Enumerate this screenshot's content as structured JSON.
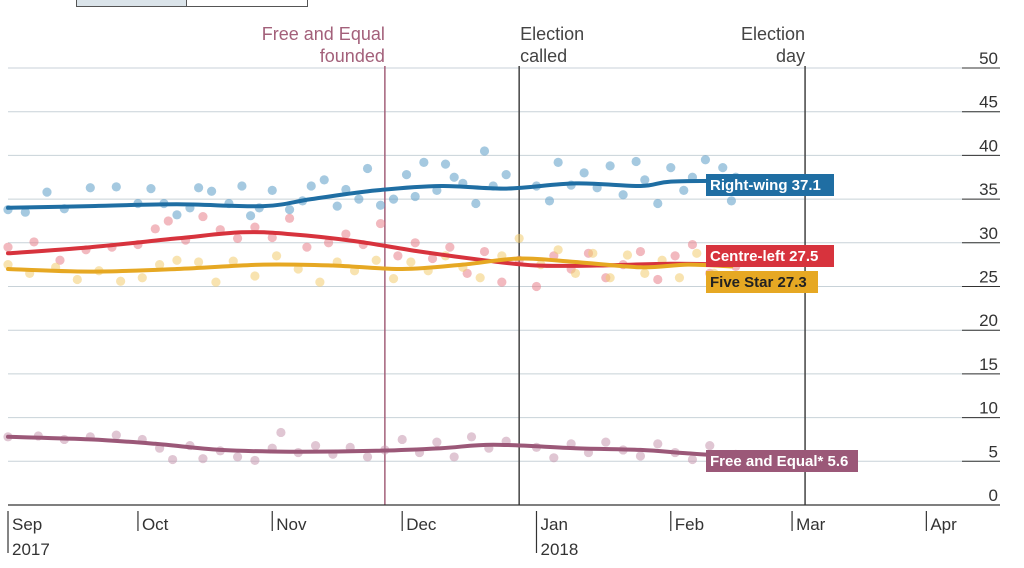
{
  "chart_data": {
    "type": "line",
    "x_axis": {
      "ticks": [
        {
          "date": "2017-09-01",
          "label": "Sep",
          "sub": "2017"
        },
        {
          "date": "2017-10-01",
          "label": "Oct",
          "sub": ""
        },
        {
          "date": "2017-11-01",
          "label": "Nov",
          "sub": ""
        },
        {
          "date": "2017-12-01",
          "label": "Dec",
          "sub": ""
        },
        {
          "date": "2018-01-01",
          "label": "Jan",
          "sub": "2018"
        },
        {
          "date": "2018-02-01",
          "label": "Feb",
          "sub": ""
        },
        {
          "date": "2018-03-01",
          "label": "Mar",
          "sub": ""
        },
        {
          "date": "2018-04-01",
          "label": "Apr",
          "sub": ""
        }
      ],
      "range": [
        "2017-09-01",
        "2018-04-18"
      ]
    },
    "y_axis": {
      "ticks": [
        0,
        5,
        10,
        15,
        20,
        25,
        30,
        35,
        40,
        45,
        50
      ],
      "ylim": [
        0,
        50
      ],
      "position": "right",
      "grid": true
    },
    "annotations": [
      {
        "date": "2017-11-27",
        "line1": "Free and Equal",
        "line2": "founded",
        "color": "#a3607a",
        "align": "end"
      },
      {
        "date": "2017-12-28",
        "line1": "Election",
        "line2": "called",
        "color": "#444444",
        "align": "start"
      },
      {
        "date": "2018-03-04",
        "line1": "Election",
        "line2": "day",
        "color": "#444444",
        "align": "end"
      }
    ],
    "series": [
      {
        "name": "Right-wing",
        "end_value": "37.1",
        "color": "#1f6ea3",
        "dot_color": "#5b9cc6",
        "trend": [
          [
            "2017-09-01",
            34.0
          ],
          [
            "2017-09-20",
            34.2
          ],
          [
            "2017-10-10",
            34.4
          ],
          [
            "2017-10-30",
            34.2
          ],
          [
            "2017-11-10",
            35.0
          ],
          [
            "2017-11-25",
            36.0
          ],
          [
            "2017-12-10",
            36.5
          ],
          [
            "2017-12-25",
            36.2
          ],
          [
            "2018-01-10",
            36.8
          ],
          [
            "2018-01-25",
            36.5
          ],
          [
            "2018-02-01",
            37.0
          ],
          [
            "2018-02-15",
            37.1
          ]
        ],
        "polls": [
          [
            "2017-09-01",
            33.8
          ],
          [
            "2017-09-05",
            33.5
          ],
          [
            "2017-09-10",
            35.8
          ],
          [
            "2017-09-14",
            33.9
          ],
          [
            "2017-09-20",
            36.3
          ],
          [
            "2017-09-26",
            36.4
          ],
          [
            "2017-10-01",
            34.5
          ],
          [
            "2017-10-04",
            36.2
          ],
          [
            "2017-10-07",
            34.5
          ],
          [
            "2017-10-10",
            33.2
          ],
          [
            "2017-10-13",
            34.0
          ],
          [
            "2017-10-15",
            36.3
          ],
          [
            "2017-10-18",
            35.9
          ],
          [
            "2017-10-22",
            34.5
          ],
          [
            "2017-10-25",
            36.5
          ],
          [
            "2017-10-27",
            33.1
          ],
          [
            "2017-10-29",
            34.0
          ],
          [
            "2017-11-01",
            36.0
          ],
          [
            "2017-11-05",
            33.8
          ],
          [
            "2017-11-08",
            34.8
          ],
          [
            "2017-11-10",
            36.5
          ],
          [
            "2017-11-13",
            37.2
          ],
          [
            "2017-11-16",
            34.2
          ],
          [
            "2017-11-18",
            36.1
          ],
          [
            "2017-11-21",
            35.0
          ],
          [
            "2017-11-23",
            38.5
          ],
          [
            "2017-11-26",
            34.3
          ],
          [
            "2017-11-29",
            35.0
          ],
          [
            "2017-12-02",
            37.8
          ],
          [
            "2017-12-04",
            35.3
          ],
          [
            "2017-12-06",
            39.2
          ],
          [
            "2017-12-09",
            36.0
          ],
          [
            "2017-12-11",
            39.0
          ],
          [
            "2017-12-13",
            37.5
          ],
          [
            "2017-12-15",
            36.8
          ],
          [
            "2017-12-18",
            34.5
          ],
          [
            "2017-12-20",
            40.5
          ],
          [
            "2017-12-22",
            36.5
          ],
          [
            "2017-12-25",
            37.8
          ],
          [
            "2018-01-01",
            36.5
          ],
          [
            "2018-01-04",
            34.8
          ],
          [
            "2018-01-06",
            39.2
          ],
          [
            "2018-01-09",
            36.6
          ],
          [
            "2018-01-12",
            38.0
          ],
          [
            "2018-01-15",
            36.3
          ],
          [
            "2018-01-18",
            38.8
          ],
          [
            "2018-01-21",
            35.5
          ],
          [
            "2018-01-24",
            39.3
          ],
          [
            "2018-01-26",
            37.2
          ],
          [
            "2018-01-29",
            34.5
          ],
          [
            "2018-02-01",
            38.6
          ],
          [
            "2018-02-04",
            36.0
          ],
          [
            "2018-02-06",
            37.5
          ],
          [
            "2018-02-09",
            39.5
          ],
          [
            "2018-02-11",
            36.4
          ],
          [
            "2018-02-13",
            38.6
          ],
          [
            "2018-02-15",
            34.8
          ],
          [
            "2018-02-16",
            37.5
          ]
        ]
      },
      {
        "name": "Centre-left",
        "end_value": "27.5",
        "color": "#d7333d",
        "dot_color": "#e8808a",
        "trend": [
          [
            "2017-09-01",
            28.8
          ],
          [
            "2017-09-20",
            29.5
          ],
          [
            "2017-10-10",
            30.5
          ],
          [
            "2017-10-25",
            31.2
          ],
          [
            "2017-11-05",
            31.0
          ],
          [
            "2017-11-20",
            30.2
          ],
          [
            "2017-12-05",
            29.0
          ],
          [
            "2017-12-20",
            28.0
          ],
          [
            "2018-01-01",
            27.4
          ],
          [
            "2018-01-15",
            27.4
          ],
          [
            "2018-02-01",
            27.6
          ],
          [
            "2018-02-15",
            27.5
          ]
        ],
        "polls": [
          [
            "2017-09-01",
            29.5
          ],
          [
            "2017-09-07",
            30.1
          ],
          [
            "2017-09-13",
            28.0
          ],
          [
            "2017-09-19",
            29.2
          ],
          [
            "2017-09-25",
            29.5
          ],
          [
            "2017-10-01",
            29.8
          ],
          [
            "2017-10-05",
            31.6
          ],
          [
            "2017-10-08",
            32.5
          ],
          [
            "2017-10-12",
            30.3
          ],
          [
            "2017-10-16",
            33.0
          ],
          [
            "2017-10-20",
            31.5
          ],
          [
            "2017-10-24",
            30.5
          ],
          [
            "2017-10-28",
            31.8
          ],
          [
            "2017-11-01",
            30.6
          ],
          [
            "2017-11-05",
            32.8
          ],
          [
            "2017-11-09",
            29.5
          ],
          [
            "2017-11-14",
            30.0
          ],
          [
            "2017-11-18",
            31.0
          ],
          [
            "2017-11-22",
            29.8
          ],
          [
            "2017-11-26",
            32.2
          ],
          [
            "2017-11-30",
            28.5
          ],
          [
            "2017-12-04",
            30.0
          ],
          [
            "2017-12-08",
            28.2
          ],
          [
            "2017-12-12",
            29.5
          ],
          [
            "2017-12-16",
            26.5
          ],
          [
            "2017-12-20",
            29.0
          ],
          [
            "2017-12-24",
            25.5
          ],
          [
            "2017-12-28",
            28.0
          ],
          [
            "2018-01-01",
            25.0
          ],
          [
            "2018-01-05",
            28.5
          ],
          [
            "2018-01-09",
            27.0
          ],
          [
            "2018-01-13",
            28.8
          ],
          [
            "2018-01-17",
            26.0
          ],
          [
            "2018-01-21",
            27.5
          ],
          [
            "2018-01-25",
            29.0
          ],
          [
            "2018-01-29",
            25.8
          ],
          [
            "2018-02-02",
            28.5
          ],
          [
            "2018-02-06",
            29.8
          ],
          [
            "2018-02-10",
            26.5
          ],
          [
            "2018-02-14",
            28.5
          ],
          [
            "2018-02-16",
            27.3
          ]
        ]
      },
      {
        "name": "Five Star",
        "end_value": "27.3",
        "color": "#e6a823",
        "dot_color": "#f3cc6f",
        "trend": [
          [
            "2017-09-01",
            27.0
          ],
          [
            "2017-09-20",
            26.7
          ],
          [
            "2017-10-10",
            27.0
          ],
          [
            "2017-10-30",
            27.5
          ],
          [
            "2017-11-15",
            27.4
          ],
          [
            "2017-12-01",
            27.0
          ],
          [
            "2017-12-15",
            27.5
          ],
          [
            "2017-12-28",
            28.2
          ],
          [
            "2018-01-10",
            27.8
          ],
          [
            "2018-01-25",
            27.2
          ],
          [
            "2018-02-05",
            27.5
          ],
          [
            "2018-02-15",
            27.3
          ]
        ],
        "polls": [
          [
            "2017-09-01",
            27.5
          ],
          [
            "2017-09-06",
            26.5
          ],
          [
            "2017-09-12",
            27.2
          ],
          [
            "2017-09-17",
            25.8
          ],
          [
            "2017-09-22",
            26.8
          ],
          [
            "2017-09-27",
            25.6
          ],
          [
            "2017-10-02",
            26.0
          ],
          [
            "2017-10-06",
            27.5
          ],
          [
            "2017-10-10",
            28.0
          ],
          [
            "2017-10-15",
            27.8
          ],
          [
            "2017-10-19",
            25.5
          ],
          [
            "2017-10-23",
            27.9
          ],
          [
            "2017-10-28",
            26.2
          ],
          [
            "2017-11-02",
            28.5
          ],
          [
            "2017-11-07",
            27.0
          ],
          [
            "2017-11-12",
            25.5
          ],
          [
            "2017-11-16",
            27.8
          ],
          [
            "2017-11-20",
            26.8
          ],
          [
            "2017-11-25",
            28.0
          ],
          [
            "2017-11-29",
            25.9
          ],
          [
            "2017-12-03",
            27.8
          ],
          [
            "2017-12-07",
            26.8
          ],
          [
            "2017-12-11",
            28.5
          ],
          [
            "2017-12-15",
            27.2
          ],
          [
            "2017-12-19",
            26.0
          ],
          [
            "2017-12-24",
            28.5
          ],
          [
            "2017-12-28",
            30.5
          ],
          [
            "2018-01-02",
            27.5
          ],
          [
            "2018-01-06",
            29.2
          ],
          [
            "2018-01-10",
            26.5
          ],
          [
            "2018-01-14",
            28.8
          ],
          [
            "2018-01-18",
            26.0
          ],
          [
            "2018-01-22",
            28.6
          ],
          [
            "2018-01-26",
            26.5
          ],
          [
            "2018-01-30",
            28.0
          ],
          [
            "2018-02-03",
            26.0
          ],
          [
            "2018-02-07",
            28.8
          ],
          [
            "2018-02-11",
            26.5
          ],
          [
            "2018-02-14",
            29.2
          ],
          [
            "2018-02-16",
            25.8
          ]
        ]
      },
      {
        "name": "Free and Equal*",
        "end_value": "5.6",
        "color": "#9b5878",
        "dot_color": "#c797ae",
        "trend": [
          [
            "2017-09-01",
            7.8
          ],
          [
            "2017-09-20",
            7.5
          ],
          [
            "2017-10-05",
            7.0
          ],
          [
            "2017-10-20",
            6.3
          ],
          [
            "2017-11-05",
            6.1
          ],
          [
            "2017-11-25",
            6.2
          ],
          [
            "2017-12-10",
            6.5
          ],
          [
            "2017-12-22",
            6.9
          ],
          [
            "2018-01-10",
            6.5
          ],
          [
            "2018-01-25",
            6.3
          ],
          [
            "2018-02-05",
            5.9
          ],
          [
            "2018-02-15",
            5.6
          ]
        ],
        "polls": [
          [
            "2017-09-01",
            7.8
          ],
          [
            "2017-09-08",
            7.9
          ],
          [
            "2017-09-14",
            7.5
          ],
          [
            "2017-09-20",
            7.8
          ],
          [
            "2017-09-26",
            8.0
          ],
          [
            "2017-10-02",
            7.5
          ],
          [
            "2017-10-06",
            6.5
          ],
          [
            "2017-10-09",
            5.2
          ],
          [
            "2017-10-13",
            6.8
          ],
          [
            "2017-10-16",
            5.3
          ],
          [
            "2017-10-20",
            6.2
          ],
          [
            "2017-10-24",
            5.5
          ],
          [
            "2017-10-28",
            5.1
          ],
          [
            "2017-11-01",
            6.5
          ],
          [
            "2017-11-03",
            8.3
          ],
          [
            "2017-11-07",
            6.0
          ],
          [
            "2017-11-11",
            6.8
          ],
          [
            "2017-11-15",
            5.8
          ],
          [
            "2017-11-19",
            6.6
          ],
          [
            "2017-11-23",
            5.5
          ],
          [
            "2017-11-27",
            6.3
          ],
          [
            "2017-12-01",
            7.5
          ],
          [
            "2017-12-05",
            6.0
          ],
          [
            "2017-12-09",
            7.2
          ],
          [
            "2017-12-13",
            5.5
          ],
          [
            "2017-12-17",
            7.8
          ],
          [
            "2017-12-21",
            6.5
          ],
          [
            "2017-12-25",
            7.3
          ],
          [
            "2018-01-01",
            6.6
          ],
          [
            "2018-01-05",
            5.4
          ],
          [
            "2018-01-09",
            7.0
          ],
          [
            "2018-01-13",
            6.0
          ],
          [
            "2018-01-17",
            7.2
          ],
          [
            "2018-01-21",
            6.3
          ],
          [
            "2018-01-25",
            5.6
          ],
          [
            "2018-01-29",
            7.0
          ],
          [
            "2018-02-02",
            6.0
          ],
          [
            "2018-02-06",
            5.2
          ],
          [
            "2018-02-10",
            6.8
          ],
          [
            "2018-02-13",
            5.0
          ],
          [
            "2018-02-16",
            5.8
          ]
        ]
      }
    ]
  }
}
